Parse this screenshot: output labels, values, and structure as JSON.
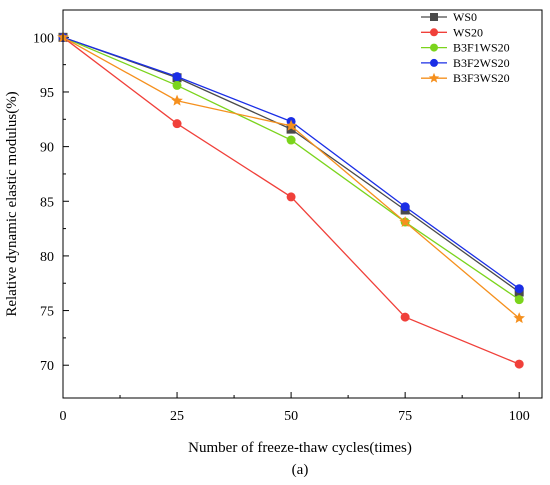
{
  "chart_data": {
    "type": "line",
    "xlabel": "Number of freeze-thaw cycles(times)",
    "ylabel": "Relative dynamic elastic modulus(%)",
    "x": [
      0,
      25,
      50,
      75,
      100
    ],
    "xlim": [
      0,
      105
    ],
    "ylim": [
      67,
      102.5
    ],
    "xticks": [
      "0",
      "25",
      "50",
      "75",
      "100"
    ],
    "yticks": [
      "70",
      "75",
      "80",
      "85",
      "90",
      "95",
      "100"
    ],
    "grid": false,
    "legend_position": "top-right",
    "series": [
      {
        "name": "WS0",
        "color": "#4a4a4a",
        "marker": "square",
        "values": [
          100,
          96.3,
          91.6,
          84.2,
          76.7
        ]
      },
      {
        "name": "WS20",
        "color": "#f0403a",
        "marker": "circle",
        "values": [
          100,
          92.1,
          85.4,
          74.4,
          70.1
        ]
      },
      {
        "name": "B3F1WS20",
        "color": "#7bd41c",
        "marker": "circle",
        "values": [
          100,
          95.6,
          90.6,
          83.1,
          76.0
        ]
      },
      {
        "name": "B3F2WS20",
        "color": "#1a2ee6",
        "marker": "circle",
        "values": [
          100,
          96.4,
          92.3,
          84.5,
          77.0
        ]
      },
      {
        "name": "B3F3WS20",
        "color": "#f5901e",
        "marker": "star",
        "values": [
          100,
          94.2,
          91.9,
          83.1,
          74.3
        ]
      }
    ]
  },
  "caption": "(a)"
}
